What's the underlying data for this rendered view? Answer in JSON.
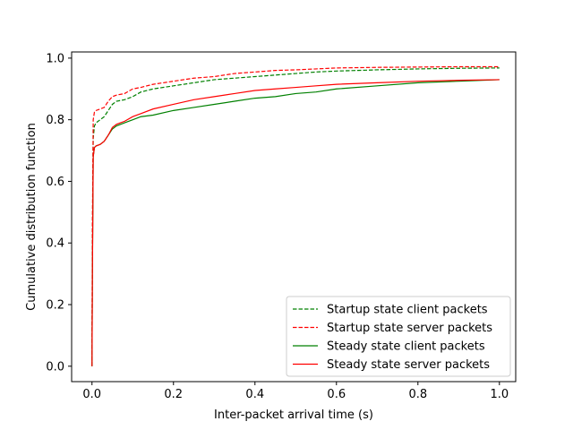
{
  "chart_data": {
    "type": "line",
    "title": "",
    "xlabel": "Inter-packet arrival time (s)",
    "ylabel": "Cumulative distribution function",
    "xlim": [
      -0.05,
      1.04
    ],
    "ylim": [
      -0.05,
      1.02
    ],
    "xticks": [
      0.0,
      0.2,
      0.4,
      0.6,
      0.8,
      1.0
    ],
    "xtick_labels": [
      "0.0",
      "0.2",
      "0.4",
      "0.6",
      "0.8",
      "1.0"
    ],
    "yticks": [
      0.0,
      0.2,
      0.4,
      0.6,
      0.8,
      1.0
    ],
    "ytick_labels": [
      "0.0",
      "0.2",
      "0.4",
      "0.6",
      "0.8",
      "1.0"
    ],
    "grid": false,
    "legend_position": "lower-right",
    "series": [
      {
        "name": "Startup state client packets",
        "color": "#008000",
        "dash": "dashed",
        "x": [
          0.0,
          0.001,
          0.003,
          0.006,
          0.01,
          0.02,
          0.03,
          0.04,
          0.05,
          0.06,
          0.08,
          0.1,
          0.12,
          0.15,
          0.2,
          0.25,
          0.3,
          0.35,
          0.4,
          0.45,
          0.5,
          0.55,
          0.6,
          0.7,
          0.8,
          0.9,
          1.0
        ],
        "y": [
          0.0,
          0.4,
          0.74,
          0.78,
          0.79,
          0.8,
          0.81,
          0.83,
          0.85,
          0.86,
          0.865,
          0.875,
          0.89,
          0.9,
          0.91,
          0.92,
          0.93,
          0.935,
          0.94,
          0.945,
          0.95,
          0.955,
          0.958,
          0.962,
          0.965,
          0.967,
          0.968
        ]
      },
      {
        "name": "Startup state server packets",
        "color": "#ff0000",
        "dash": "dashed",
        "x": [
          0.0,
          0.001,
          0.003,
          0.006,
          0.01,
          0.02,
          0.03,
          0.04,
          0.05,
          0.06,
          0.08,
          0.1,
          0.12,
          0.15,
          0.2,
          0.25,
          0.3,
          0.35,
          0.4,
          0.45,
          0.5,
          0.55,
          0.6,
          0.7,
          0.8,
          0.9,
          1.0
        ],
        "y": [
          0.0,
          0.45,
          0.8,
          0.825,
          0.83,
          0.835,
          0.84,
          0.86,
          0.875,
          0.88,
          0.885,
          0.9,
          0.905,
          0.915,
          0.925,
          0.935,
          0.94,
          0.95,
          0.955,
          0.96,
          0.962,
          0.965,
          0.968,
          0.97,
          0.971,
          0.972,
          0.972
        ]
      },
      {
        "name": "Steady state client packets",
        "color": "#008000",
        "dash": "solid",
        "x": [
          0.0,
          0.001,
          0.003,
          0.006,
          0.01,
          0.02,
          0.03,
          0.04,
          0.05,
          0.06,
          0.07,
          0.08,
          0.1,
          0.12,
          0.15,
          0.2,
          0.25,
          0.3,
          0.35,
          0.4,
          0.45,
          0.5,
          0.55,
          0.6,
          0.7,
          0.8,
          0.9,
          1.0
        ],
        "y": [
          0.0,
          0.3,
          0.68,
          0.71,
          0.715,
          0.72,
          0.73,
          0.75,
          0.77,
          0.78,
          0.785,
          0.79,
          0.8,
          0.81,
          0.815,
          0.83,
          0.84,
          0.85,
          0.86,
          0.87,
          0.875,
          0.885,
          0.89,
          0.9,
          0.91,
          0.92,
          0.925,
          0.93
        ]
      },
      {
        "name": "Steady state server packets",
        "color": "#ff0000",
        "dash": "solid",
        "x": [
          0.0,
          0.001,
          0.003,
          0.006,
          0.01,
          0.02,
          0.03,
          0.04,
          0.05,
          0.06,
          0.07,
          0.08,
          0.1,
          0.12,
          0.15,
          0.2,
          0.25,
          0.3,
          0.35,
          0.4,
          0.45,
          0.5,
          0.55,
          0.6,
          0.7,
          0.8,
          0.9,
          1.0
        ],
        "y": [
          0.0,
          0.3,
          0.68,
          0.71,
          0.715,
          0.72,
          0.73,
          0.75,
          0.775,
          0.785,
          0.79,
          0.795,
          0.81,
          0.82,
          0.835,
          0.85,
          0.865,
          0.875,
          0.885,
          0.895,
          0.9,
          0.905,
          0.91,
          0.915,
          0.92,
          0.925,
          0.928,
          0.93
        ]
      }
    ]
  }
}
